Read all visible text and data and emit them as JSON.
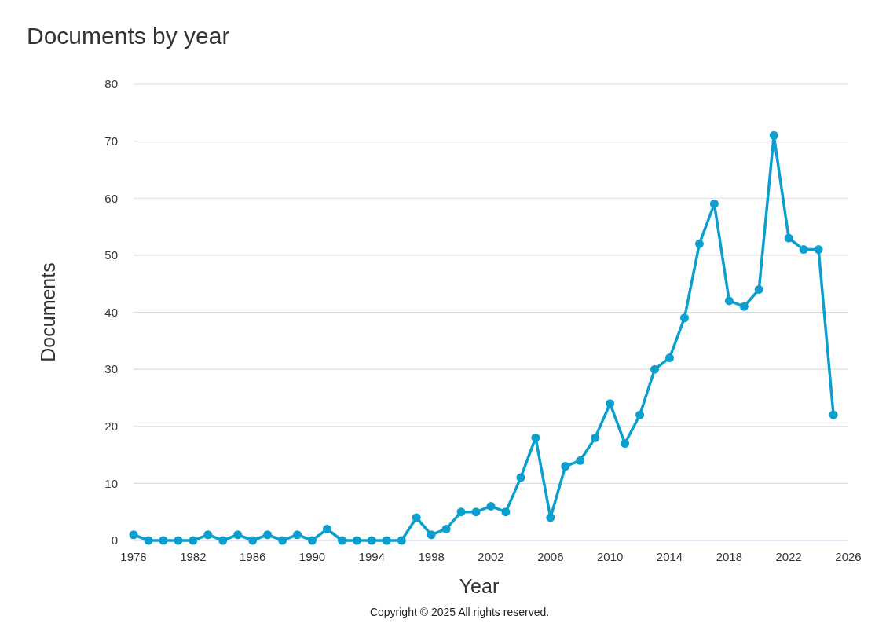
{
  "chart_data": {
    "type": "line",
    "title": "Documents by year",
    "xlabel": "Year",
    "ylabel": "Documents",
    "x": [
      1978,
      1979,
      1980,
      1981,
      1982,
      1983,
      1984,
      1985,
      1986,
      1987,
      1988,
      1989,
      1990,
      1991,
      1992,
      1993,
      1994,
      1995,
      1996,
      1997,
      1998,
      1999,
      2000,
      2001,
      2002,
      2003,
      2004,
      2005,
      2006,
      2007,
      2008,
      2009,
      2010,
      2011,
      2012,
      2013,
      2014,
      2015,
      2016,
      2017,
      2018,
      2019,
      2020,
      2021,
      2022,
      2023,
      2024,
      2025
    ],
    "series": [
      {
        "color": "#0a9fcf",
        "values": [
          1,
          0,
          0,
          0,
          0,
          1,
          0,
          1,
          0,
          1,
          0,
          1,
          0,
          2,
          0,
          0,
          0,
          0,
          0,
          4,
          1,
          2,
          5,
          5,
          6,
          5,
          11,
          18,
          4,
          13,
          14,
          18,
          24,
          17,
          22,
          30,
          32,
          39,
          52,
          59,
          42,
          41,
          44,
          71,
          53,
          51,
          51,
          22
        ]
      }
    ],
    "xlim": [
      1978,
      2026
    ],
    "xticks": [
      1978,
      1982,
      1986,
      1990,
      1994,
      1998,
      2002,
      2006,
      2010,
      2014,
      2018,
      2022,
      2026
    ],
    "ylim": [
      0,
      80
    ],
    "yticks": [
      0,
      10,
      20,
      30,
      40,
      50,
      60,
      70,
      80
    ],
    "grid": "y",
    "marker": "circle",
    "line_style": "solid",
    "annotations": [
      "Copyright © 2025 All rights reserved."
    ]
  }
}
